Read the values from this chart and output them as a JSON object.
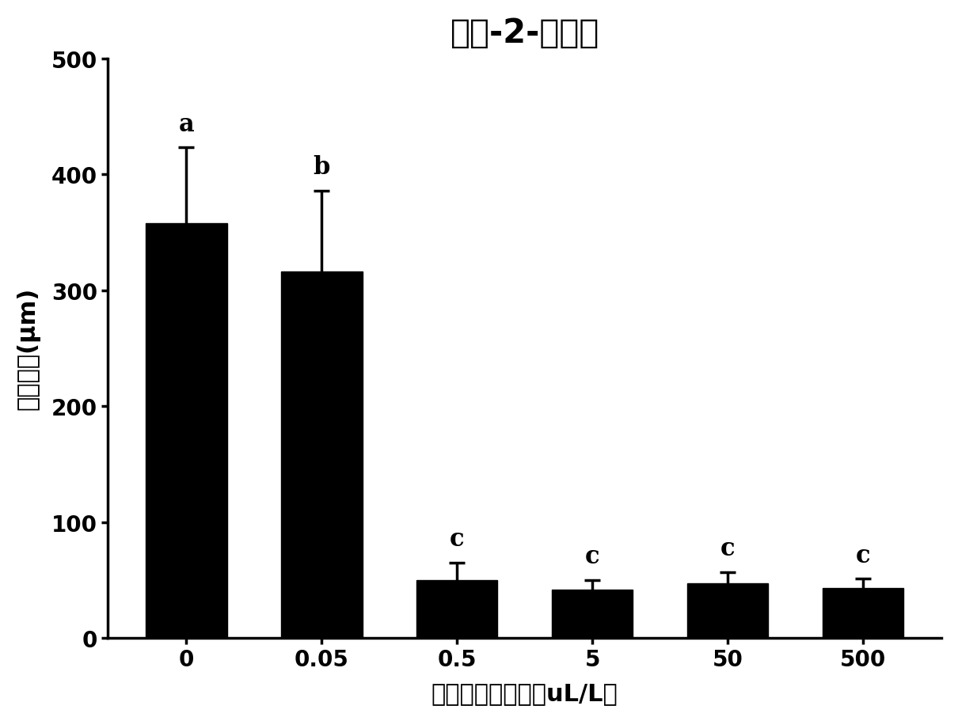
{
  "title": "反式-2-己烯醇",
  "xlabel": "挥发性物质浓度（uL/L）",
  "ylabel": "菌体长度(μm)",
  "categories": [
    "0",
    "0.05",
    "0.5",
    "5",
    "50",
    "500"
  ],
  "values": [
    358,
    316,
    50,
    42,
    47,
    43
  ],
  "errors": [
    65,
    70,
    15,
    8,
    10,
    8
  ],
  "letters": [
    "a",
    "b",
    "c",
    "c",
    "c",
    "c"
  ],
  "bar_color": "#000000",
  "bar_edge_color": "#000000",
  "ylim": [
    0,
    500
  ],
  "yticks": [
    0,
    100,
    200,
    300,
    400,
    500
  ],
  "background_color": "#ffffff",
  "title_fontsize": 30,
  "label_fontsize": 22,
  "tick_fontsize": 20,
  "letter_fontsize": 22,
  "bar_width": 0.6
}
